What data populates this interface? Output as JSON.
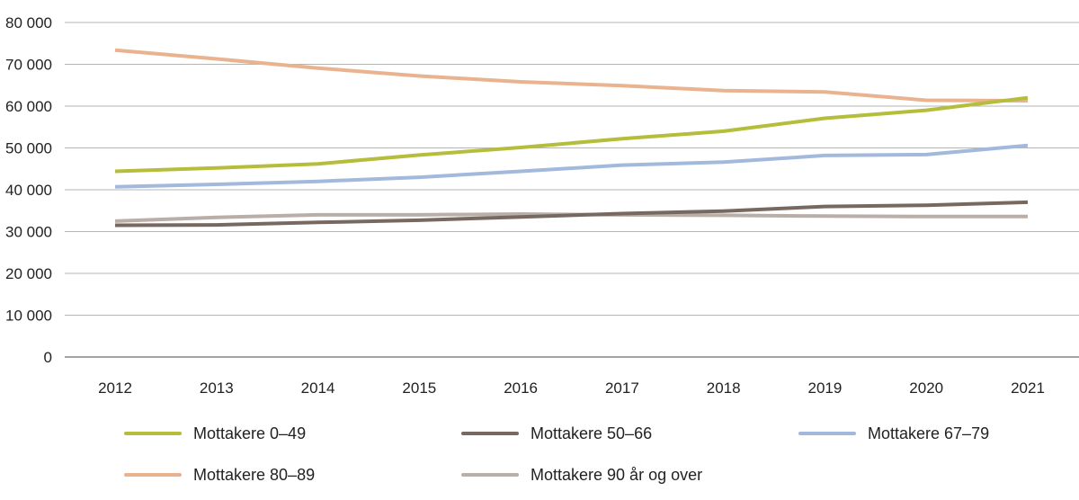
{
  "chart_data": {
    "type": "line",
    "title": "",
    "xlabel": "",
    "ylabel": "",
    "x": [
      "2012",
      "2013",
      "2014",
      "2015",
      "2016",
      "2017",
      "2018",
      "2019",
      "2020",
      "2021"
    ],
    "ylim": [
      0,
      80000
    ],
    "yticks": [
      0,
      10000,
      20000,
      30000,
      40000,
      50000,
      60000,
      70000,
      80000
    ],
    "ytick_labels": [
      "0",
      "10 000",
      "20 000",
      "30 000",
      "40 000",
      "50 000",
      "60 000",
      "70 000",
      "80 000"
    ],
    "grid": "horizontal",
    "legend_position": "bottom",
    "series": [
      {
        "name": "Mottakere 0–49",
        "color": "#b5bd3b",
        "values": [
          44400,
          45200,
          46200,
          48300,
          50100,
          52200,
          54000,
          57100,
          59000,
          62000
        ]
      },
      {
        "name": "Mottakere 50–66",
        "color": "#77695f",
        "values": [
          31500,
          31600,
          32200,
          32700,
          33500,
          34300,
          34900,
          36000,
          36300,
          37000
        ]
      },
      {
        "name": "Mottakere 67–79",
        "color": "#a3b8dd",
        "values": [
          40700,
          41300,
          42000,
          43000,
          44400,
          45900,
          46600,
          48200,
          48400,
          50600
        ]
      },
      {
        "name": "Mottakere 80–89",
        "color": "#e8b38e",
        "values": [
          73400,
          71300,
          69100,
          67200,
          65800,
          64900,
          63700,
          63400,
          61400,
          61300
        ]
      },
      {
        "name": "Mottakere 90 år og over",
        "color": "#b9aea8",
        "values": [
          32500,
          33400,
          34000,
          34000,
          34200,
          34000,
          33900,
          33700,
          33600,
          33600
        ]
      }
    ]
  }
}
